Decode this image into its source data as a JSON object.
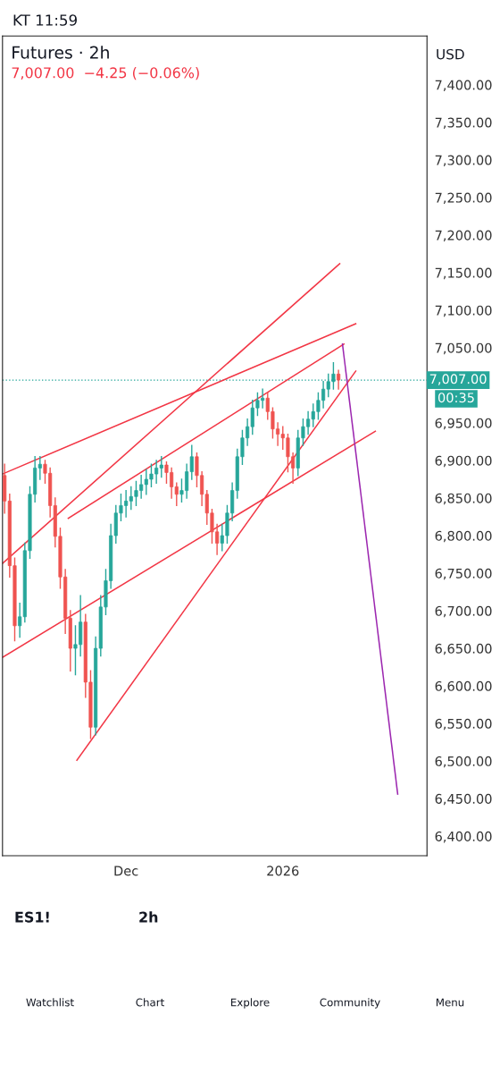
{
  "chart_data": {
    "type": "candlestick",
    "title": "Futures · 2h",
    "subtitle": "7,007.00  −4.25 (−0.06%)",
    "x": [
      "2025-11-07",
      "2025-11-08",
      "2025-11-09",
      "2025-11-10",
      "2025-11-11",
      "2025-11-12",
      "2025-11-13",
      "2025-11-14",
      "2025-11-15",
      "2025-11-16",
      "2025-11-17",
      "2025-11-18",
      "2025-11-19",
      "2025-11-20",
      "2025-11-21",
      "2025-11-22",
      "2025-11-23",
      "2025-11-24",
      "2025-11-25",
      "2025-11-26",
      "2025-11-27",
      "2025-11-28",
      "2025-11-29",
      "2025-11-30",
      "2025-12-01",
      "2025-12-02",
      "2025-12-03",
      "2025-12-04",
      "2025-12-05",
      "2025-12-06",
      "2025-12-07",
      "2025-12-08",
      "2025-12-09",
      "2025-12-10",
      "2025-12-11",
      "2025-12-12",
      "2025-12-13",
      "2025-12-14",
      "2025-12-15",
      "2025-12-16",
      "2025-12-17",
      "2025-12-18",
      "2025-12-19",
      "2025-12-20",
      "2025-12-21",
      "2025-12-22",
      "2025-12-23",
      "2025-12-24",
      "2025-12-25",
      "2025-12-26",
      "2025-12-27",
      "2025-12-28",
      "2025-12-29",
      "2025-12-30",
      "2025-12-31",
      "2026-01-01",
      "2026-01-02",
      "2026-01-03",
      "2026-01-04",
      "2026-01-05",
      "2026-01-06",
      "2026-01-07",
      "2026-01-08",
      "2026-01-09",
      "2026-01-10",
      "2026-01-11",
      "2026-01-12"
    ],
    "ohlc": [
      [
        6880,
        6895,
        6830,
        6846
      ],
      [
        6846,
        6855,
        6745,
        6760
      ],
      [
        6760,
        6770,
        6660,
        6680
      ],
      [
        6680,
        6710,
        6665,
        6692
      ],
      [
        6692,
        6790,
        6685,
        6780
      ],
      [
        6780,
        6865,
        6770,
        6855
      ],
      [
        6855,
        6905,
        6845,
        6890
      ],
      [
        6890,
        6905,
        6875,
        6895
      ],
      [
        6895,
        6900,
        6870,
        6883
      ],
      [
        6883,
        6890,
        6825,
        6840
      ],
      [
        6840,
        6850,
        6785,
        6799
      ],
      [
        6799,
        6810,
        6730,
        6745
      ],
      [
        6745,
        6755,
        6670,
        6690
      ],
      [
        6690,
        6700,
        6620,
        6650
      ],
      [
        6650,
        6680,
        6615,
        6655
      ],
      [
        6655,
        6720,
        6640,
        6685
      ],
      [
        6685,
        6695,
        6585,
        6605
      ],
      [
        6605,
        6620,
        6530,
        6545
      ],
      [
        6545,
        6665,
        6535,
        6650
      ],
      [
        6650,
        6720,
        6640,
        6705
      ],
      [
        6705,
        6755,
        6695,
        6740
      ],
      [
        6740,
        6815,
        6730,
        6800
      ],
      [
        6800,
        6840,
        6790,
        6830
      ],
      [
        6830,
        6855,
        6820,
        6840
      ],
      [
        6840,
        6860,
        6825,
        6846
      ],
      [
        6846,
        6865,
        6835,
        6852
      ],
      [
        6852,
        6872,
        6840,
        6860
      ],
      [
        6860,
        6880,
        6850,
        6868
      ],
      [
        6868,
        6888,
        6855,
        6875
      ],
      [
        6875,
        6895,
        6865,
        6882
      ],
      [
        6882,
        6900,
        6870,
        6890
      ],
      [
        6890,
        6905,
        6878,
        6894
      ],
      [
        6894,
        6898,
        6870,
        6884
      ],
      [
        6884,
        6890,
        6850,
        6865
      ],
      [
        6865,
        6870,
        6840,
        6855
      ],
      [
        6855,
        6875,
        6845,
        6860
      ],
      [
        6860,
        6895,
        6850,
        6885
      ],
      [
        6885,
        6920,
        6875,
        6905
      ],
      [
        6905,
        6910,
        6865,
        6880
      ],
      [
        6880,
        6885,
        6840,
        6855
      ],
      [
        6855,
        6860,
        6815,
        6830
      ],
      [
        6830,
        6835,
        6790,
        6805
      ],
      [
        6805,
        6815,
        6775,
        6790
      ],
      [
        6790,
        6815,
        6780,
        6800
      ],
      [
        6800,
        6840,
        6790,
        6830
      ],
      [
        6830,
        6870,
        6820,
        6860
      ],
      [
        6860,
        6915,
        6850,
        6905
      ],
      [
        6905,
        6940,
        6895,
        6930
      ],
      [
        6930,
        6955,
        6920,
        6945
      ],
      [
        6945,
        6980,
        6935,
        6970
      ],
      [
        6970,
        6990,
        6960,
        6980
      ],
      [
        6980,
        6995,
        6970,
        6983
      ],
      [
        6983,
        6990,
        6955,
        6965
      ],
      [
        6965,
        6970,
        6930,
        6942
      ],
      [
        6942,
        6950,
        6920,
        6935
      ],
      [
        6935,
        6945,
        6915,
        6930
      ],
      [
        6930,
        6935,
        6885,
        6905
      ],
      [
        6905,
        6910,
        6870,
        6890
      ],
      [
        6890,
        6940,
        6880,
        6930
      ],
      [
        6930,
        6955,
        6920,
        6945
      ],
      [
        6945,
        6965,
        6935,
        6955
      ],
      [
        6955,
        6975,
        6945,
        6965
      ],
      [
        6965,
        6990,
        6955,
        6980
      ],
      [
        6980,
        7005,
        6970,
        6995
      ],
      [
        6995,
        7015,
        6985,
        7005
      ],
      [
        7005,
        7030,
        6995,
        7015
      ],
      [
        7015,
        7020,
        6995,
        7007
      ]
    ],
    "colors": [
      "#ef5350",
      "#ef5350",
      "#ef5350",
      "#26a69a",
      "#26a69a",
      "#26a69a",
      "#26a69a",
      "#26a69a",
      "#ef5350",
      "#ef5350",
      "#ef5350",
      "#ef5350",
      "#ef5350",
      "#ef5350",
      "#26a69a",
      "#26a69a",
      "#ef5350",
      "#ef5350",
      "#26a69a",
      "#26a69a",
      "#26a69a",
      "#26a69a",
      "#26a69a",
      "#26a69a",
      "#26a69a",
      "#26a69a",
      "#26a69a",
      "#26a69a",
      "#26a69a",
      "#26a69a",
      "#26a69a",
      "#26a69a",
      "#ef5350",
      "#ef5350",
      "#ef5350",
      "#26a69a",
      "#26a69a",
      "#26a69a",
      "#ef5350",
      "#ef5350",
      "#ef5350",
      "#ef5350",
      "#ef5350",
      "#26a69a",
      "#26a69a",
      "#26a69a",
      "#26a69a",
      "#26a69a",
      "#26a69a",
      "#26a69a",
      "#26a69a",
      "#26a69a",
      "#ef5350",
      "#ef5350",
      "#ef5350",
      "#ef5350",
      "#ef5350",
      "#ef5350",
      "#26a69a",
      "#26a69a",
      "#26a69a",
      "#26a69a",
      "#26a69a",
      "#26a69a",
      "#26a69a",
      "#26a69a",
      "#ef5350"
    ],
    "series": [
      {
        "type": "line",
        "color": "#f23645",
        "x": [
          "2025-11-06T14:00",
          "2026-01-12T06:00"
        ],
        "values": [
          6763,
          7162
        ]
      },
      {
        "type": "line",
        "color": "#f23645",
        "x": [
          "2025-11-06T14:00",
          "2026-01-15T10:00"
        ],
        "values": [
          6882,
          7082
        ]
      },
      {
        "type": "line",
        "color": "#f23645",
        "x": [
          "2025-11-19T14:00",
          "2026-01-13T02:00"
        ],
        "values": [
          6823,
          7055
        ]
      },
      {
        "type": "line",
        "color": "#f23645",
        "x": [
          "2025-11-06T14:00",
          "2026-01-19T07:00"
        ],
        "values": [
          6638,
          6939
        ]
      },
      {
        "type": "line",
        "color": "#f23645",
        "x": [
          "2025-11-21T07:00",
          "2026-01-15T10:00"
        ],
        "values": [
          6501,
          7019
        ]
      },
      {
        "type": "line",
        "color": "#9c27b0",
        "x": [
          "2026-01-12T19:00",
          "2026-01-23T17:00"
        ],
        "values": [
          7055,
          6456
        ]
      }
    ],
    "ref_lines": [
      {
        "axis": "y",
        "value": 7007,
        "label": "7,007.00",
        "color": "#26a69a",
        "line_style": "dotted"
      }
    ],
    "xlim": [
      "2025-11-06T14:00",
      "2026-01-29T12:00"
    ],
    "xticks": [
      {
        "value": "2025-12-01",
        "label": "Dec"
      },
      {
        "value": "2026-01-01",
        "label": "2026"
      }
    ],
    "ylim": [
      6374,
      7465
    ],
    "yticks": [
      {
        "value": 6400,
        "label": "6,400.00"
      },
      {
        "value": 6450,
        "label": "6,450.00"
      },
      {
        "value": 6500,
        "label": "6,500.00"
      },
      {
        "value": 6550,
        "label": "6,550.00"
      },
      {
        "value": 6600,
        "label": "6,600.00"
      },
      {
        "value": 6650,
        "label": "6,650.00"
      },
      {
        "value": 6700,
        "label": "6,700.00"
      },
      {
        "value": 6750,
        "label": "6,750.00"
      },
      {
        "value": 6800,
        "label": "6,800.00"
      },
      {
        "value": 6850,
        "label": "6,850.00"
      },
      {
        "value": 6900,
        "label": "6,900.00"
      },
      {
        "value": 6950,
        "label": "6,950.00"
      },
      {
        "value": 7050,
        "label": "7,050.00"
      },
      {
        "value": 7100,
        "label": "7,100.00"
      },
      {
        "value": 7150,
        "label": "7,150.00"
      },
      {
        "value": 7200,
        "label": "7,200.00"
      },
      {
        "value": 7250,
        "label": "7,250.00"
      },
      {
        "value": 7300,
        "label": "7,300.00"
      },
      {
        "value": 7350,
        "label": "7,350.00"
      },
      {
        "value": 7400,
        "label": "7,400.00"
      }
    ],
    "annotations": [
      "00:35",
      "USD",
      "KT 11:59",
      "ES1!",
      "2h",
      "Watchlist",
      "Chart",
      "Explore",
      "Community",
      "Menu"
    ]
  }
}
